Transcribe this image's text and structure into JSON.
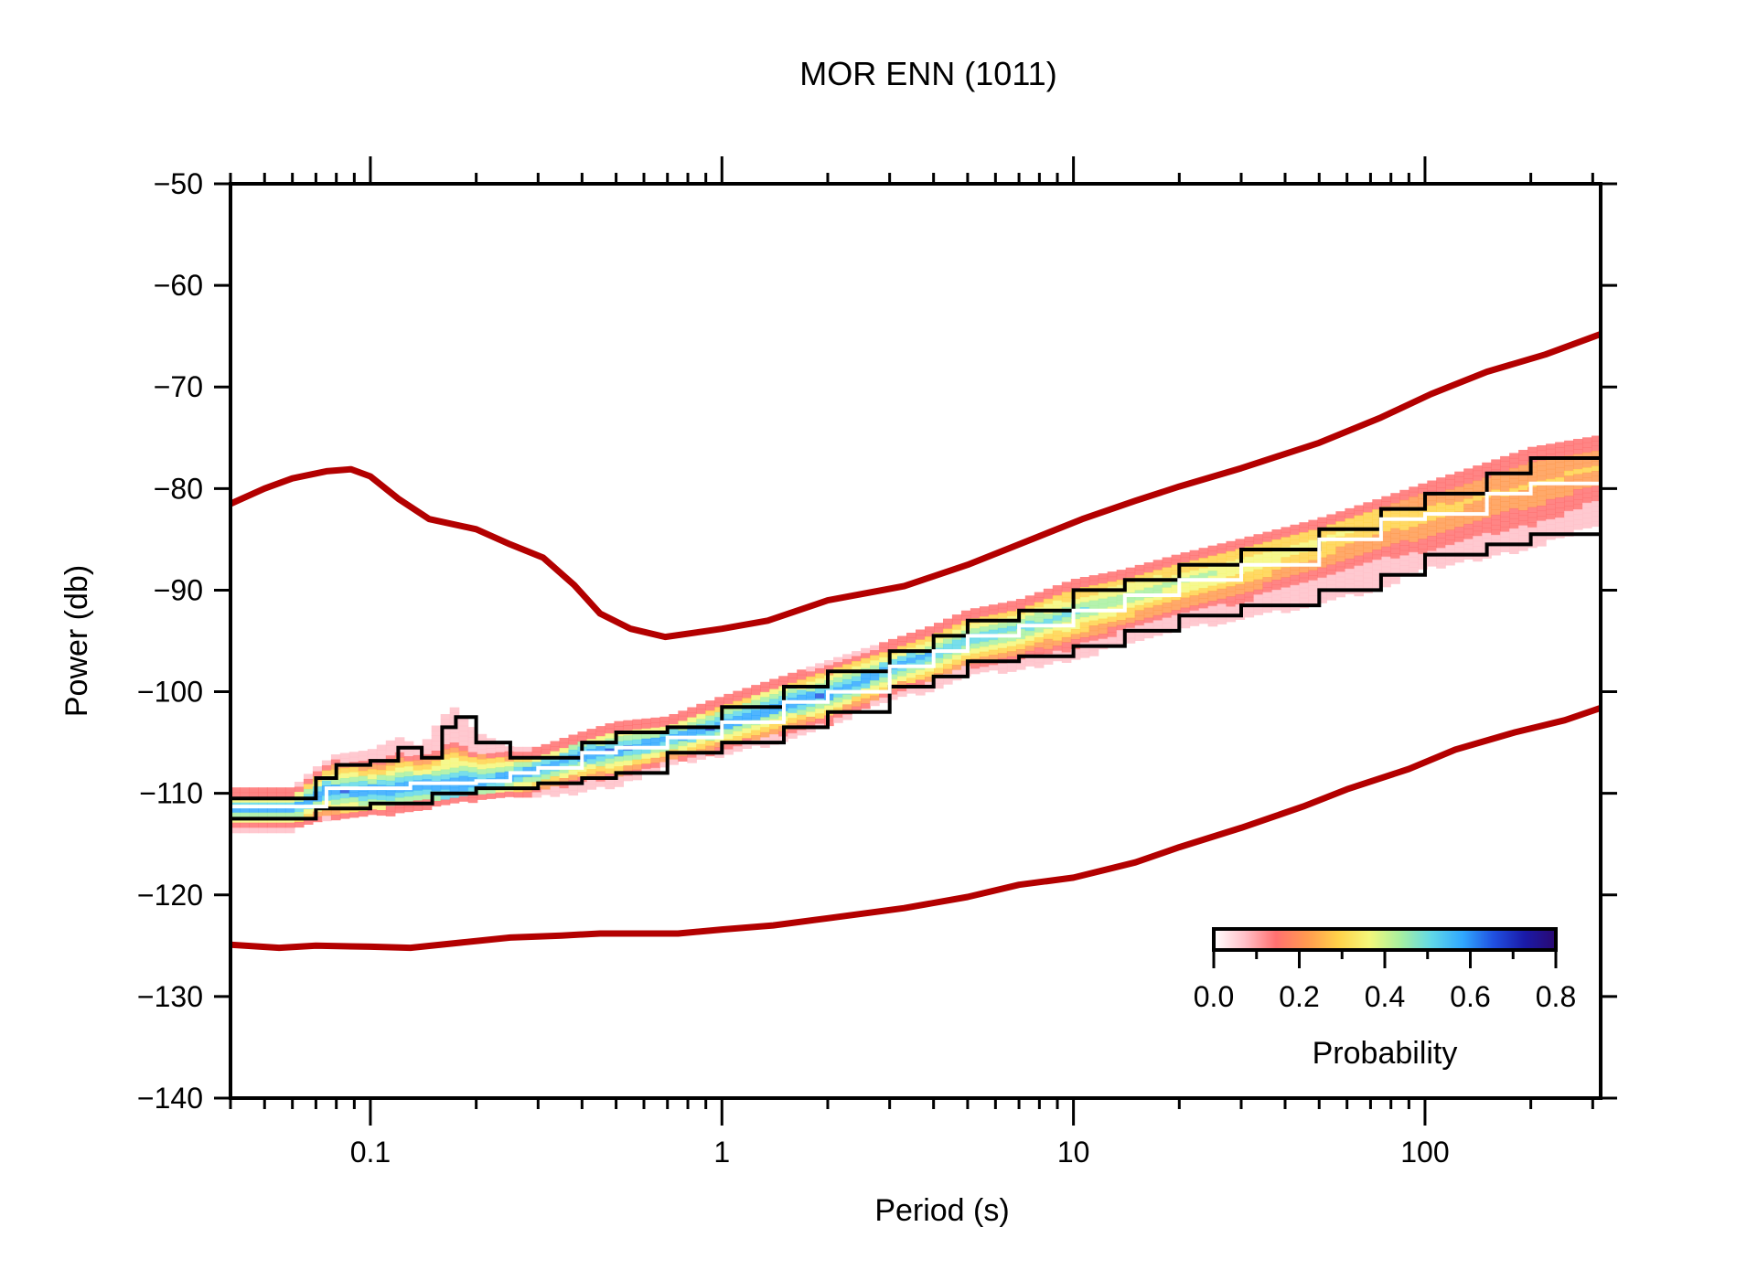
{
  "chart_data": {
    "type": "heatmap",
    "title": "MOR ENN (1011)",
    "xlabel": "Period (s)",
    "ylabel": "Power (db)",
    "xscale": "log",
    "xlim": [
      0.04,
      316
    ],
    "ylim": [
      -140,
      -50
    ],
    "x_ticks": [
      {
        "v": 0.1,
        "label": "0.1"
      },
      {
        "v": 1,
        "label": "1"
      },
      {
        "v": 10,
        "label": "10"
      },
      {
        "v": 100,
        "label": "100"
      }
    ],
    "y_ticks": [
      {
        "v": -50,
        "label": "−50"
      },
      {
        "v": -60,
        "label": "−60"
      },
      {
        "v": -70,
        "label": "−70"
      },
      {
        "v": -80,
        "label": "−80"
      },
      {
        "v": -90,
        "label": "−90"
      },
      {
        "v": -100,
        "label": "−100"
      },
      {
        "v": -110,
        "label": "−110"
      },
      {
        "v": -120,
        "label": "−120"
      },
      {
        "v": -130,
        "label": "−130"
      },
      {
        "v": -140,
        "label": "−140"
      }
    ],
    "grid": false,
    "reference_curves": [
      {
        "name": "NHNM",
        "color": "#b30000",
        "x": [
          0.04,
          0.05,
          0.06,
          0.075,
          0.088,
          0.1,
          0.12,
          0.147,
          0.2,
          0.25,
          0.31,
          0.38,
          0.45,
          0.55,
          0.69,
          1.0,
          1.35,
          2.0,
          3.3,
          5.0,
          7.0,
          10.6,
          15,
          20,
          30,
          50,
          75,
          104,
          150,
          220,
          316
        ],
        "y": [
          -81.5,
          -80,
          -79,
          -78.3,
          -78.1,
          -78.8,
          -81,
          -83,
          -84,
          -85.5,
          -86.8,
          -89.5,
          -92.3,
          -93.8,
          -94.6,
          -93.8,
          -93,
          -91,
          -89.6,
          -87.5,
          -85.5,
          -83,
          -81.2,
          -79.8,
          -78,
          -75.5,
          -73,
          -70.7,
          -68.5,
          -66.8,
          -64.8
        ]
      },
      {
        "name": "NLNM",
        "color": "#b30000",
        "x": [
          0.04,
          0.055,
          0.07,
          0.1,
          0.13,
          0.18,
          0.25,
          0.35,
          0.45,
          0.75,
          1.0,
          1.4,
          2.0,
          3.3,
          5.0,
          7.0,
          10,
          15,
          20,
          30,
          45,
          60,
          90,
          122,
          180,
          250,
          316
        ],
        "y": [
          -124.9,
          -125.2,
          -125,
          -125.1,
          -125.2,
          -124.7,
          -124.2,
          -124,
          -123.8,
          -123.8,
          -123.4,
          -123,
          -122.3,
          -121.3,
          -120.2,
          -119,
          -118.3,
          -116.8,
          -115.3,
          -113.4,
          -111.3,
          -109.6,
          -107.6,
          -105.7,
          -104,
          -102.8,
          -101.6
        ]
      }
    ],
    "series": [
      {
        "name": "mode",
        "color": "#ffffff",
        "x": [
          0.04,
          0.06,
          0.075,
          0.09,
          0.11,
          0.13,
          0.15,
          0.2,
          0.25,
          0.3,
          0.4,
          0.5,
          0.7,
          1.0,
          1.5,
          2.0,
          3.0,
          4.0,
          5.0,
          7.0,
          10,
          14,
          20,
          30,
          50,
          75,
          100,
          150,
          200,
          316
        ],
        "y": [
          -111.3,
          -111.3,
          -109.5,
          -109.5,
          -109.5,
          -109,
          -109,
          -108.8,
          -108,
          -107.5,
          -106,
          -105.5,
          -104.5,
          -103,
          -101,
          -100,
          -97.5,
          -96,
          -94.5,
          -93.5,
          -92,
          -90.5,
          -89,
          -87.5,
          -85,
          -83,
          -82.5,
          -80.5,
          -79.5,
          -77.5
        ]
      },
      {
        "name": "percentile-high",
        "color": "#000000",
        "x": [
          0.04,
          0.06,
          0.07,
          0.08,
          0.1,
          0.12,
          0.14,
          0.16,
          0.175,
          0.2,
          0.25,
          0.3,
          0.4,
          0.5,
          0.7,
          1.0,
          1.5,
          2.0,
          3.0,
          4.0,
          5.0,
          7.0,
          10,
          14,
          20,
          30,
          50,
          75,
          100,
          150,
          200,
          316
        ],
        "y": [
          -110.5,
          -110.5,
          -108.5,
          -107.2,
          -106.8,
          -105.5,
          -106.5,
          -103.5,
          -102.5,
          -105,
          -106.5,
          -106.5,
          -105,
          -104,
          -103.5,
          -101.5,
          -99.5,
          -98,
          -96,
          -94.5,
          -93,
          -92,
          -90,
          -89,
          -87.5,
          -86,
          -84,
          -82,
          -80.5,
          -78.5,
          -77,
          -75.8
        ]
      },
      {
        "name": "percentile-low",
        "color": "#000000",
        "x": [
          0.04,
          0.06,
          0.07,
          0.1,
          0.15,
          0.2,
          0.3,
          0.4,
          0.5,
          0.7,
          1.0,
          1.5,
          2.0,
          3.0,
          4.0,
          5.0,
          7.0,
          10,
          14,
          20,
          30,
          50,
          75,
          100,
          150,
          200,
          316
        ],
        "y": [
          -112.5,
          -112.5,
          -111.5,
          -111,
          -110,
          -109.5,
          -109,
          -108.5,
          -108,
          -106,
          -105,
          -103.5,
          -102,
          -99.5,
          -98.5,
          -97,
          -96.5,
          -95.5,
          -94,
          -92.5,
          -91.5,
          -90,
          -88.5,
          -86.5,
          -85.5,
          -84.5,
          -82
        ]
      }
    ],
    "colorbar": {
      "label": "Probability",
      "range": [
        0.0,
        0.8
      ],
      "ticks": [
        {
          "v": 0.0,
          "label": "0.0"
        },
        {
          "v": 0.2,
          "label": "0.2"
        },
        {
          "v": 0.4,
          "label": "0.4"
        },
        {
          "v": 0.6,
          "label": "0.6"
        },
        {
          "v": 0.8,
          "label": "0.8"
        }
      ],
      "colors": [
        "#ffffff",
        "#ffc0c8",
        "#ff7070",
        "#ff9a50",
        "#ffd24a",
        "#f4f77a",
        "#a8f0a0",
        "#60d8e8",
        "#30a8ff",
        "#2050e0",
        "#1a1aa8",
        "#2a0870"
      ],
      "placement": "bottom-right"
    }
  }
}
